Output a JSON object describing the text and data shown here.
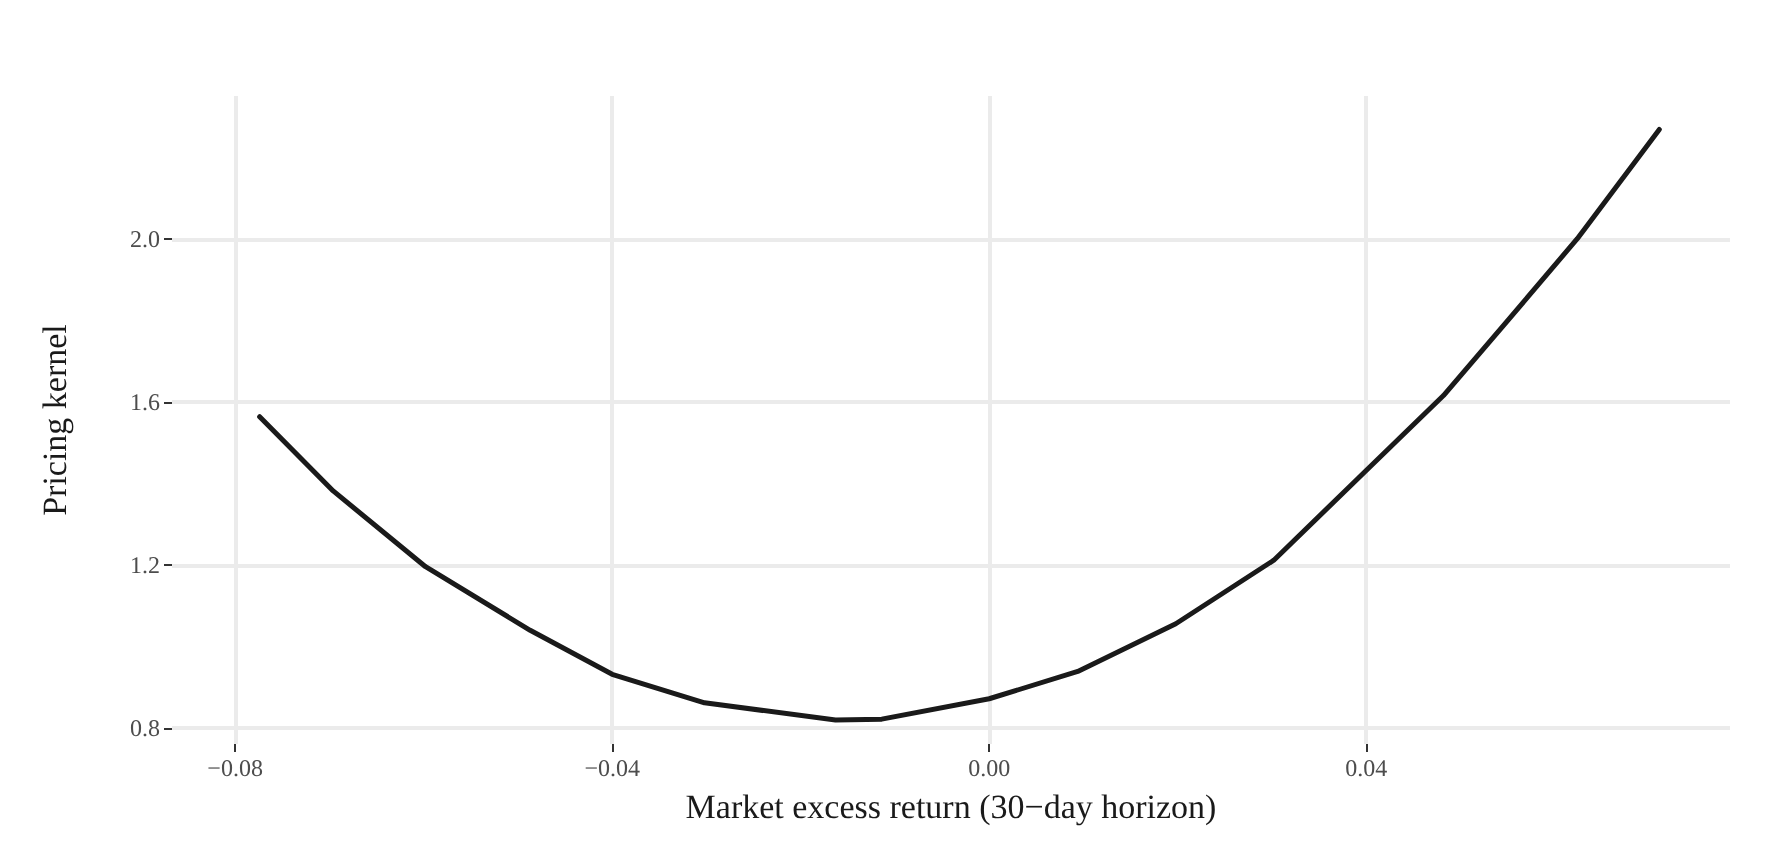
{
  "chart_data": {
    "type": "line",
    "xlabel": "Market excess return (30−day horizon)",
    "ylabel": "Pricing kernel",
    "x": [
      -0.0774,
      -0.0696,
      -0.0598,
      -0.0487,
      -0.04,
      -0.0302,
      -0.0163,
      -0.0114,
      0,
      0.0094,
      0.0198,
      0.0302,
      0.04,
      0.0482,
      0.0551,
      0.0624,
      0.0711
    ],
    "series": [
      {
        "color": "#1a1a1a",
        "values": [
          1.563,
          1.381,
          1.195,
          1.039,
          0.931,
          0.861,
          0.819,
          0.821,
          0.871,
          0.938,
          1.055,
          1.211,
          1.431,
          1.615,
          1.801,
          2.0,
          2.268
        ]
      }
    ],
    "xlim": [
      -0.0867,
      0.0786
    ],
    "xticks": [
      {
        "value": -0.08,
        "label": "−0.08"
      },
      {
        "value": -0.04,
        "label": "−0.04"
      },
      {
        "value": 0,
        "label": "0.00"
      },
      {
        "value": 0.04,
        "label": "0.04"
      }
    ],
    "ylim": [
      0.76,
      2.35
    ],
    "yticks": [
      {
        "value": 0.8,
        "label": "0.8"
      },
      {
        "value": 1.2,
        "label": "1.2"
      },
      {
        "value": 1.6,
        "label": "1.6"
      },
      {
        "value": 2.0,
        "label": "2.0"
      }
    ],
    "grid": true,
    "marker": "none",
    "line_style": "solid"
  }
}
